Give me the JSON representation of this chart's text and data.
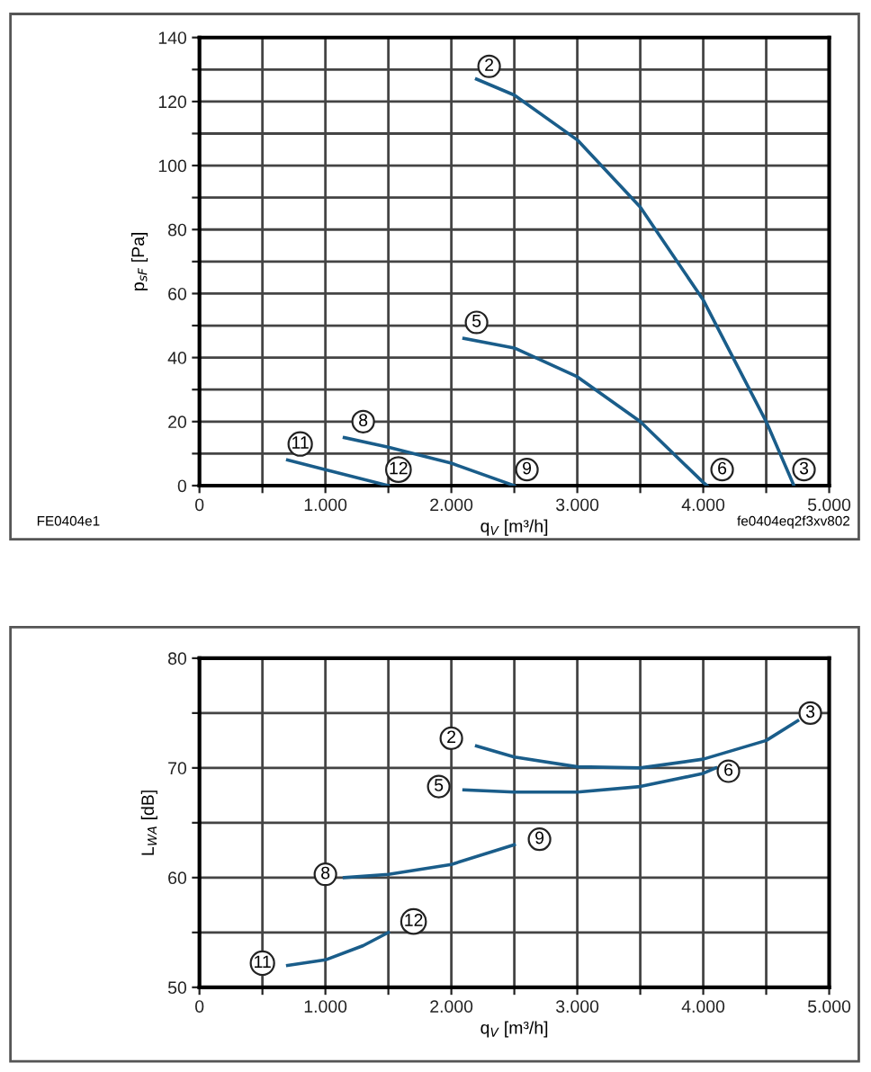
{
  "chart_data": [
    {
      "type": "line",
      "xlabel": "q$_{V}$ [m³/h]",
      "ylabel": "p$_{sF}$ [Pa]",
      "xlim": [
        0,
        5000
      ],
      "ylim": [
        0,
        140
      ],
      "grid": true,
      "legend": false,
      "marker": "none",
      "line_style": "solid",
      "xticks": [
        {
          "value": 0,
          "label": "0"
        },
        {
          "value": 500,
          "label": null
        },
        {
          "value": 1000,
          "label": "1.000"
        },
        {
          "value": 1500,
          "label": null
        },
        {
          "value": 2000,
          "label": "2.000"
        },
        {
          "value": 2500,
          "label": null
        },
        {
          "value": 3000,
          "label": "3.000"
        },
        {
          "value": 3500,
          "label": null
        },
        {
          "value": 4000,
          "label": "4.000"
        },
        {
          "value": 4500,
          "label": null
        },
        {
          "value": 5000,
          "label": "5.000"
        }
      ],
      "yticks": [
        0,
        {
          "value": 10,
          "label": null
        },
        20,
        {
          "value": 30,
          "label": null
        },
        40,
        {
          "value": 50,
          "label": null
        },
        60,
        {
          "value": 70,
          "label": null
        },
        80,
        {
          "value": 90,
          "label": null
        },
        100,
        {
          "value": 110,
          "label": null
        },
        120,
        {
          "value": 130,
          "label": null
        },
        140
      ],
      "series": [
        {
          "color": "#1a5d8a",
          "x": [
            2200,
            2500,
            3000,
            3500,
            4000,
            4500,
            4720
          ],
          "values": [
            127,
            122,
            108,
            87,
            58,
            20,
            0
          ]
        },
        {
          "color": "#1a5d8a",
          "x": [
            2100,
            2500,
            3000,
            3500,
            4000,
            4030
          ],
          "values": [
            46,
            43,
            34,
            20,
            1,
            0
          ]
        },
        {
          "color": "#1a5d8a",
          "x": [
            1150,
            1500,
            2000,
            2500
          ],
          "values": [
            15,
            12,
            7,
            0
          ]
        },
        {
          "color": "#1a5d8a",
          "x": [
            700,
            1000,
            1500
          ],
          "values": [
            8,
            5,
            0
          ]
        }
      ],
      "annotations": [
        {
          "text": "2",
          "x": 2300,
          "y": 131
        },
        {
          "text": "3",
          "x": 4800,
          "y": 5
        },
        {
          "text": "5",
          "x": 2200,
          "y": 51
        },
        {
          "text": "6",
          "x": 4150,
          "y": 5
        },
        {
          "text": "8",
          "x": 1300,
          "y": 20
        },
        {
          "text": "9",
          "x": 2600,
          "y": 5
        },
        {
          "text": "11",
          "x": 800,
          "y": 13
        },
        {
          "text": "12",
          "x": 1580,
          "y": 5
        },
        "FE0404e1",
        "fe0404eq2f3xv802"
      ]
    },
    {
      "type": "line",
      "xlabel": "q$_{V}$ [m³/h]",
      "ylabel": "L$_{WA}$ [dB]",
      "xlim": [
        0,
        5000
      ],
      "ylim": [
        50,
        80
      ],
      "grid": true,
      "legend": false,
      "marker": "none",
      "line_style": "solid",
      "xticks": [
        {
          "value": 0,
          "label": "0"
        },
        {
          "value": 500,
          "label": null
        },
        {
          "value": 1000,
          "label": "1.000"
        },
        {
          "value": 1500,
          "label": null
        },
        {
          "value": 2000,
          "label": "2.000"
        },
        {
          "value": 2500,
          "label": null
        },
        {
          "value": 3000,
          "label": "3.000"
        },
        {
          "value": 3500,
          "label": null
        },
        {
          "value": 4000,
          "label": "4.000"
        },
        {
          "value": 4500,
          "label": null
        },
        {
          "value": 5000,
          "label": "5.000"
        }
      ],
      "yticks": [
        50,
        {
          "value": 55,
          "label": null
        },
        60,
        {
          "value": 65,
          "label": null
        },
        70,
        {
          "value": 75,
          "label": null
        },
        80
      ],
      "series": [
        {
          "color": "#1a5d8a",
          "x": [
            2200,
            2500,
            3000,
            3500,
            4000,
            4500,
            4750
          ],
          "values": [
            72,
            71,
            70.1,
            70,
            70.8,
            72.5,
            74.3
          ]
        },
        {
          "color": "#1a5d8a",
          "x": [
            2100,
            2500,
            3000,
            3500,
            4000,
            4100
          ],
          "values": [
            68,
            67.8,
            67.8,
            68.3,
            69.5,
            70
          ]
        },
        {
          "color": "#1a5d8a",
          "x": [
            1150,
            1500,
            2000,
            2500
          ],
          "values": [
            60,
            60.3,
            61.2,
            63
          ]
        },
        {
          "color": "#1a5d8a",
          "x": [
            700,
            1000,
            1300,
            1500
          ],
          "values": [
            52,
            52.5,
            53.8,
            55
          ]
        }
      ],
      "annotations": [
        {
          "text": "2",
          "x": 2000,
          "y": 72.7
        },
        {
          "text": "3",
          "x": 4850,
          "y": 75
        },
        {
          "text": "5",
          "x": 1900,
          "y": 68.3
        },
        {
          "text": "6",
          "x": 4200,
          "y": 69.7
        },
        {
          "text": "8",
          "x": 1000,
          "y": 60.3
        },
        {
          "text": "9",
          "x": 2700,
          "y": 63.5
        },
        {
          "text": "11",
          "x": 500,
          "y": 52.2
        },
        {
          "text": "12",
          "x": 1700,
          "y": 56
        }
      ]
    }
  ]
}
